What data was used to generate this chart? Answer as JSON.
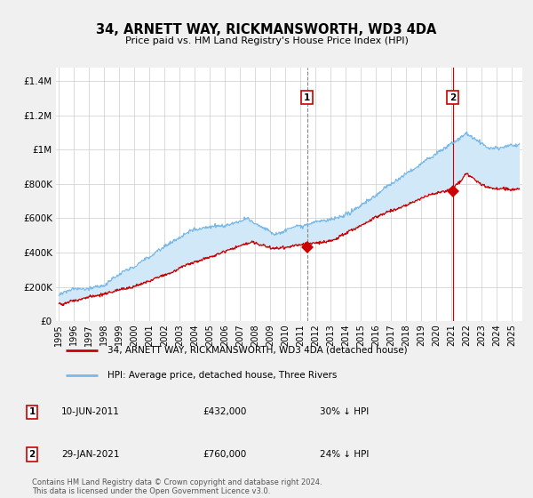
{
  "title": "34, ARNETT WAY, RICKMANSWORTH, WD3 4DA",
  "subtitle": "Price paid vs. HM Land Registry's House Price Index (HPI)",
  "ylabel_ticks": [
    "£0",
    "£200K",
    "£400K",
    "£600K",
    "£800K",
    "£1M",
    "£1.2M",
    "£1.4M"
  ],
  "ytick_values": [
    0,
    200000,
    400000,
    600000,
    800000,
    1000000,
    1200000,
    1400000
  ],
  "ylim": [
    0,
    1480000
  ],
  "xlim_start": 1994.8,
  "xlim_end": 2025.7,
  "hpi_color": "#7ab8e8",
  "hpi_fill_color": "#d0e8f8",
  "price_color": "#cc0000",
  "marker1_date": 2011.44,
  "marker1_price": 432000,
  "marker2_date": 2021.08,
  "marker2_price": 760000,
  "legend_label_red": "34, ARNETT WAY, RICKMANSWORTH, WD3 4DA (detached house)",
  "legend_label_blue": "HPI: Average price, detached house, Three Rivers",
  "table_rows": [
    [
      "1",
      "10-JUN-2011",
      "£432,000",
      "30% ↓ HPI"
    ],
    [
      "2",
      "29-JAN-2021",
      "£760,000",
      "24% ↓ HPI"
    ]
  ],
  "footer": "Contains HM Land Registry data © Crown copyright and database right 2024.\nThis data is licensed under the Open Government Licence v3.0.",
  "bg_color": "#f0f0f0",
  "plot_bg_color": "#ffffff",
  "grid_color": "#cccccc"
}
